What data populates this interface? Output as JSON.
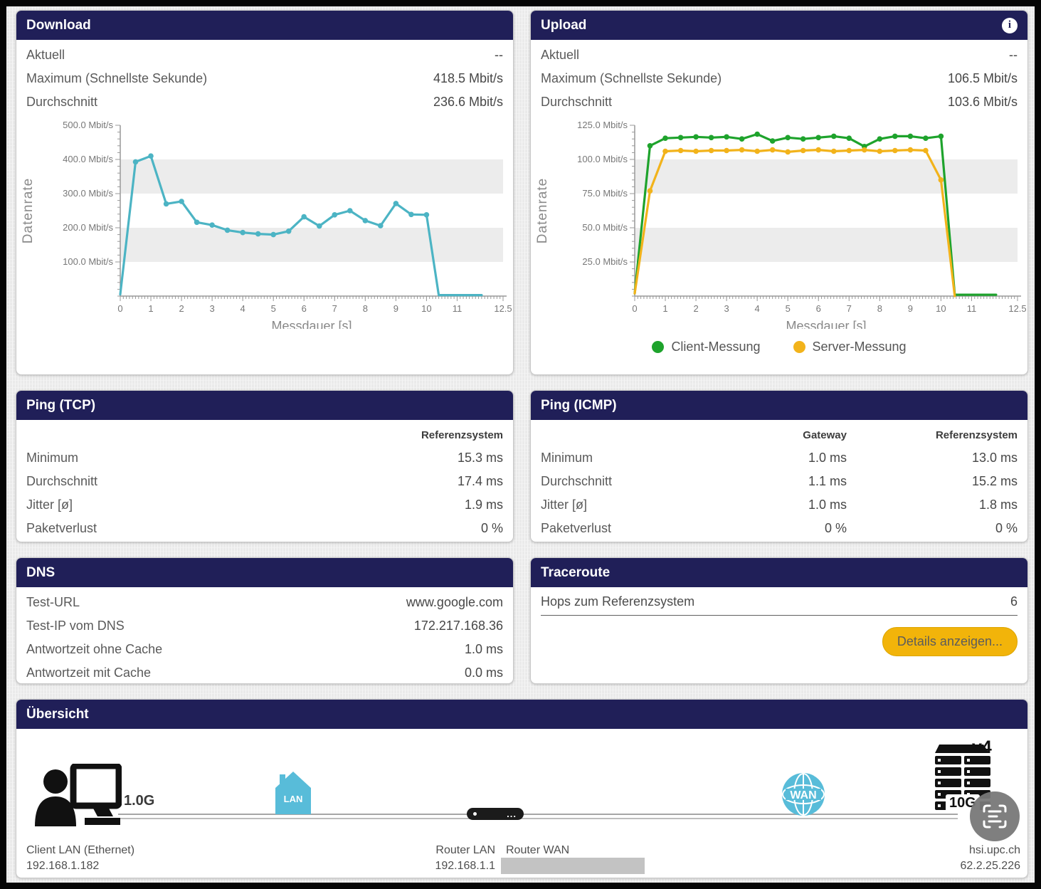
{
  "colors": {
    "header_bg": "#201f58",
    "page_bg": "#eaeaea",
    "panel_bg": "#ffffff",
    "download_line": "#4cb4c4",
    "client_line": "#1ea32c",
    "server_line": "#f2b31b",
    "button_bg": "#f2b40a",
    "band_gray": "#ececec",
    "lan_wan_blue": "#58bcd9",
    "redacted_gray": "#c3c3c3"
  },
  "icons": {
    "upload_info": "i",
    "router_dots": "...",
    "lan_label": "LAN",
    "wan_label": "WAN"
  },
  "panels": {
    "download": {
      "title": "Download",
      "stats": [
        {
          "label": "Aktuell",
          "value": "--"
        },
        {
          "label": "Maximum (Schnellste Sekunde)",
          "value": "418.5 Mbit/s"
        },
        {
          "label": "Durchschnitt",
          "value": "236.6 Mbit/s"
        }
      ]
    },
    "upload": {
      "title": "Upload",
      "stats": [
        {
          "label": "Aktuell",
          "value": "--"
        },
        {
          "label": "Maximum (Schnellste Sekunde)",
          "value": "106.5 Mbit/s"
        },
        {
          "label": "Durchschnitt",
          "value": "103.6 Mbit/s"
        }
      ],
      "legend": [
        {
          "label": "Client-Messung",
          "color": "#1ea32c"
        },
        {
          "label": "Server-Messung",
          "color": "#f2b31b"
        }
      ]
    },
    "ping_tcp": {
      "title": "Ping (TCP)",
      "columns": [
        "Referenzsystem"
      ],
      "rows": [
        {
          "label": "Minimum",
          "values": [
            "15.3 ms"
          ]
        },
        {
          "label": "Durchschnitt",
          "values": [
            "17.4 ms"
          ]
        },
        {
          "label": "Jitter [ø]",
          "values": [
            "1.9 ms"
          ]
        },
        {
          "label": "Paketverlust",
          "values": [
            "0 %"
          ]
        }
      ]
    },
    "ping_icmp": {
      "title": "Ping (ICMP)",
      "columns": [
        "Gateway",
        "Referenzsystem"
      ],
      "rows": [
        {
          "label": "Minimum",
          "values": [
            "1.0 ms",
            "13.0 ms"
          ]
        },
        {
          "label": "Durchschnitt",
          "values": [
            "1.1 ms",
            "15.2 ms"
          ]
        },
        {
          "label": "Jitter [ø]",
          "values": [
            "1.0 ms",
            "1.8 ms"
          ]
        },
        {
          "label": "Paketverlust",
          "values": [
            "0 %",
            "0 %"
          ]
        }
      ]
    },
    "dns": {
      "title": "DNS",
      "stats": [
        {
          "label": "Test-URL",
          "value": "www.google.com"
        },
        {
          "label": "Test-IP vom DNS",
          "value": "172.217.168.36"
        },
        {
          "label": "Antwortzeit ohne Cache",
          "value": "1.0 ms"
        },
        {
          "label": "Antwortzeit mit Cache",
          "value": "0.0 ms"
        }
      ]
    },
    "traceroute": {
      "title": "Traceroute",
      "rows": [
        {
          "label": "Hops zum Referenzsystem",
          "value": "6"
        }
      ],
      "button_label": "Details anzeigen..."
    },
    "overview": {
      "title": "Übersicht",
      "client_speed": "1.0G",
      "client_line1": "Client LAN (Ethernet)",
      "client_line2": "192.168.1.182",
      "router_lan_line1": "Router LAN",
      "router_lan_line2": "192.168.1.1",
      "router_wan_line1": "Router WAN",
      "server_version": "v4",
      "server_speed": "10G",
      "server_line1": "hsi.upc.ch",
      "server_line2": "62.2.25.226"
    }
  },
  "chart_data": [
    {
      "id": "download-chart",
      "type": "line",
      "title": "Download",
      "xlabel": "Messdauer [s]",
      "ylabel": "Datenrate",
      "xlim": [
        0,
        12.5
      ],
      "ylim": [
        0,
        500
      ],
      "xticks": [
        0,
        1,
        2,
        3,
        4,
        5,
        6,
        7,
        8,
        9,
        10,
        11,
        12.5
      ],
      "yticks": [
        100,
        200,
        300,
        400,
        500
      ],
      "x_minor_step": 0.1,
      "y_minor_step": 20,
      "ytick_suffix": " Mbit/s",
      "grid_bands": [
        [
          100,
          200
        ],
        [
          300,
          400
        ]
      ],
      "legend_position": "none",
      "series": [
        {
          "name": "Download",
          "color": "#4cb4c4",
          "x": [
            0,
            0.5,
            1,
            1.5,
            2,
            2.5,
            3,
            3.5,
            4,
            4.5,
            5,
            5.5,
            6,
            6.5,
            7,
            7.5,
            8,
            8.5,
            9,
            9.5,
            10,
            10.4,
            10.5,
            11,
            11.5,
            11.8
          ],
          "y": [
            5,
            393,
            410,
            270,
            277,
            216,
            208,
            193,
            186,
            182,
            180,
            190,
            232,
            205,
            238,
            250,
            221,
            206,
            271,
            239,
            238,
            3,
            3,
            3,
            3,
            3
          ]
        }
      ]
    },
    {
      "id": "upload-chart",
      "type": "line",
      "title": "Upload",
      "xlabel": "Messdauer [s]",
      "ylabel": "Datenrate",
      "xlim": [
        0,
        12.5
      ],
      "ylim": [
        0,
        125
      ],
      "xticks": [
        0,
        1,
        2,
        3,
        4,
        5,
        6,
        7,
        8,
        9,
        10,
        11,
        12.5
      ],
      "yticks": [
        25,
        50,
        75,
        100,
        125
      ],
      "x_minor_step": 0.1,
      "y_minor_step": 5,
      "ytick_suffix": " Mbit/s",
      "grid_bands": [
        [
          25,
          50
        ],
        [
          75,
          100
        ]
      ],
      "legend_position": "bottom",
      "series": [
        {
          "name": "Client-Messung",
          "color": "#1ea32c",
          "x": [
            0,
            0.5,
            1,
            1.5,
            2,
            2.5,
            3,
            3.5,
            4,
            4.5,
            5,
            5.5,
            6,
            6.5,
            7,
            7.5,
            8,
            8.5,
            9,
            9.5,
            10,
            10.45,
            10.5,
            11,
            11.5,
            11.8
          ],
          "y": [
            2,
            110,
            115.5,
            116,
            116.5,
            116,
            116.5,
            115,
            118.5,
            113.5,
            116,
            115,
            116,
            117,
            115.5,
            109.5,
            115,
            117,
            117,
            115.5,
            117,
            1,
            1,
            1,
            1,
            1
          ]
        },
        {
          "name": "Server-Messung",
          "color": "#f2b31b",
          "x": [
            0,
            0.5,
            1,
            1.5,
            2,
            2.5,
            3,
            3.5,
            4,
            4.5,
            5,
            5.5,
            6,
            6.5,
            7,
            7.5,
            8,
            8.5,
            9,
            9.5,
            10,
            10.45
          ],
          "y": [
            2,
            77,
            106,
            106.5,
            106,
            106.5,
            106.5,
            107,
            106,
            107,
            105.5,
            106.5,
            107,
            106,
            106.5,
            107,
            106,
            106.5,
            107,
            106.5,
            85,
            0
          ]
        }
      ]
    }
  ]
}
